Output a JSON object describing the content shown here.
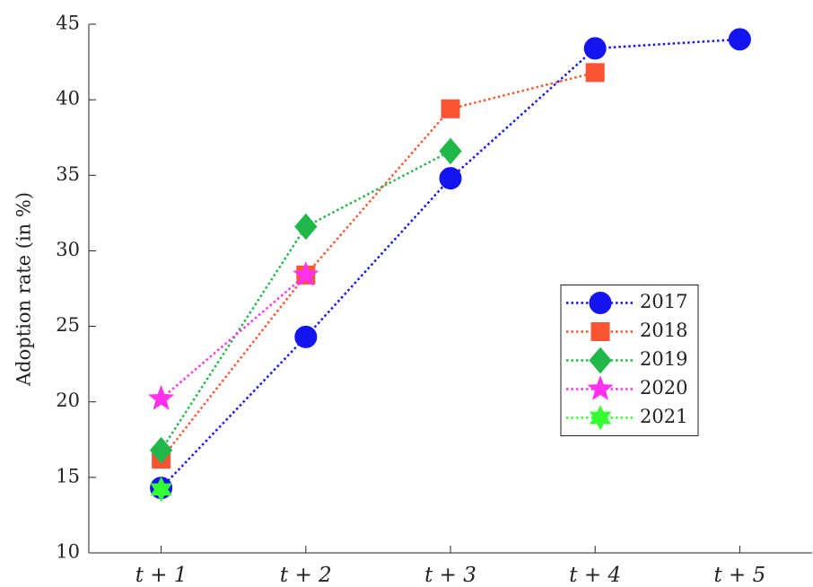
{
  "chart_data": {
    "type": "line",
    "y_label": "Adoption rate (in %)",
    "categories": [
      "t + 1",
      "t + 2",
      "t + 3",
      "t + 4",
      "t + 5"
    ],
    "series": [
      {
        "name": "2017",
        "color": "#1414f0",
        "marker": "circle",
        "values": [
          14.3,
          24.3,
          34.8,
          43.4,
          44.0
        ]
      },
      {
        "name": "2018",
        "color": "#fa5532",
        "marker": "square",
        "values": [
          16.2,
          28.4,
          39.4,
          41.8,
          null
        ]
      },
      {
        "name": "2019",
        "color": "#20b848",
        "marker": "diamond",
        "values": [
          16.8,
          31.6,
          36.6,
          null,
          null
        ]
      },
      {
        "name": "2020",
        "color": "#ff33ee",
        "marker": "star",
        "values": [
          20.2,
          28.4,
          null,
          null,
          null
        ]
      },
      {
        "name": "2021",
        "color": "#33ff33",
        "marker": "hexagram",
        "values": [
          14.2,
          null,
          null,
          null,
          null
        ]
      }
    ],
    "ylim": [
      10,
      45
    ],
    "yticks": [
      10,
      15,
      20,
      25,
      30,
      35,
      40,
      45
    ],
    "grid": false,
    "legend": "east",
    "line_style": "dotted"
  }
}
